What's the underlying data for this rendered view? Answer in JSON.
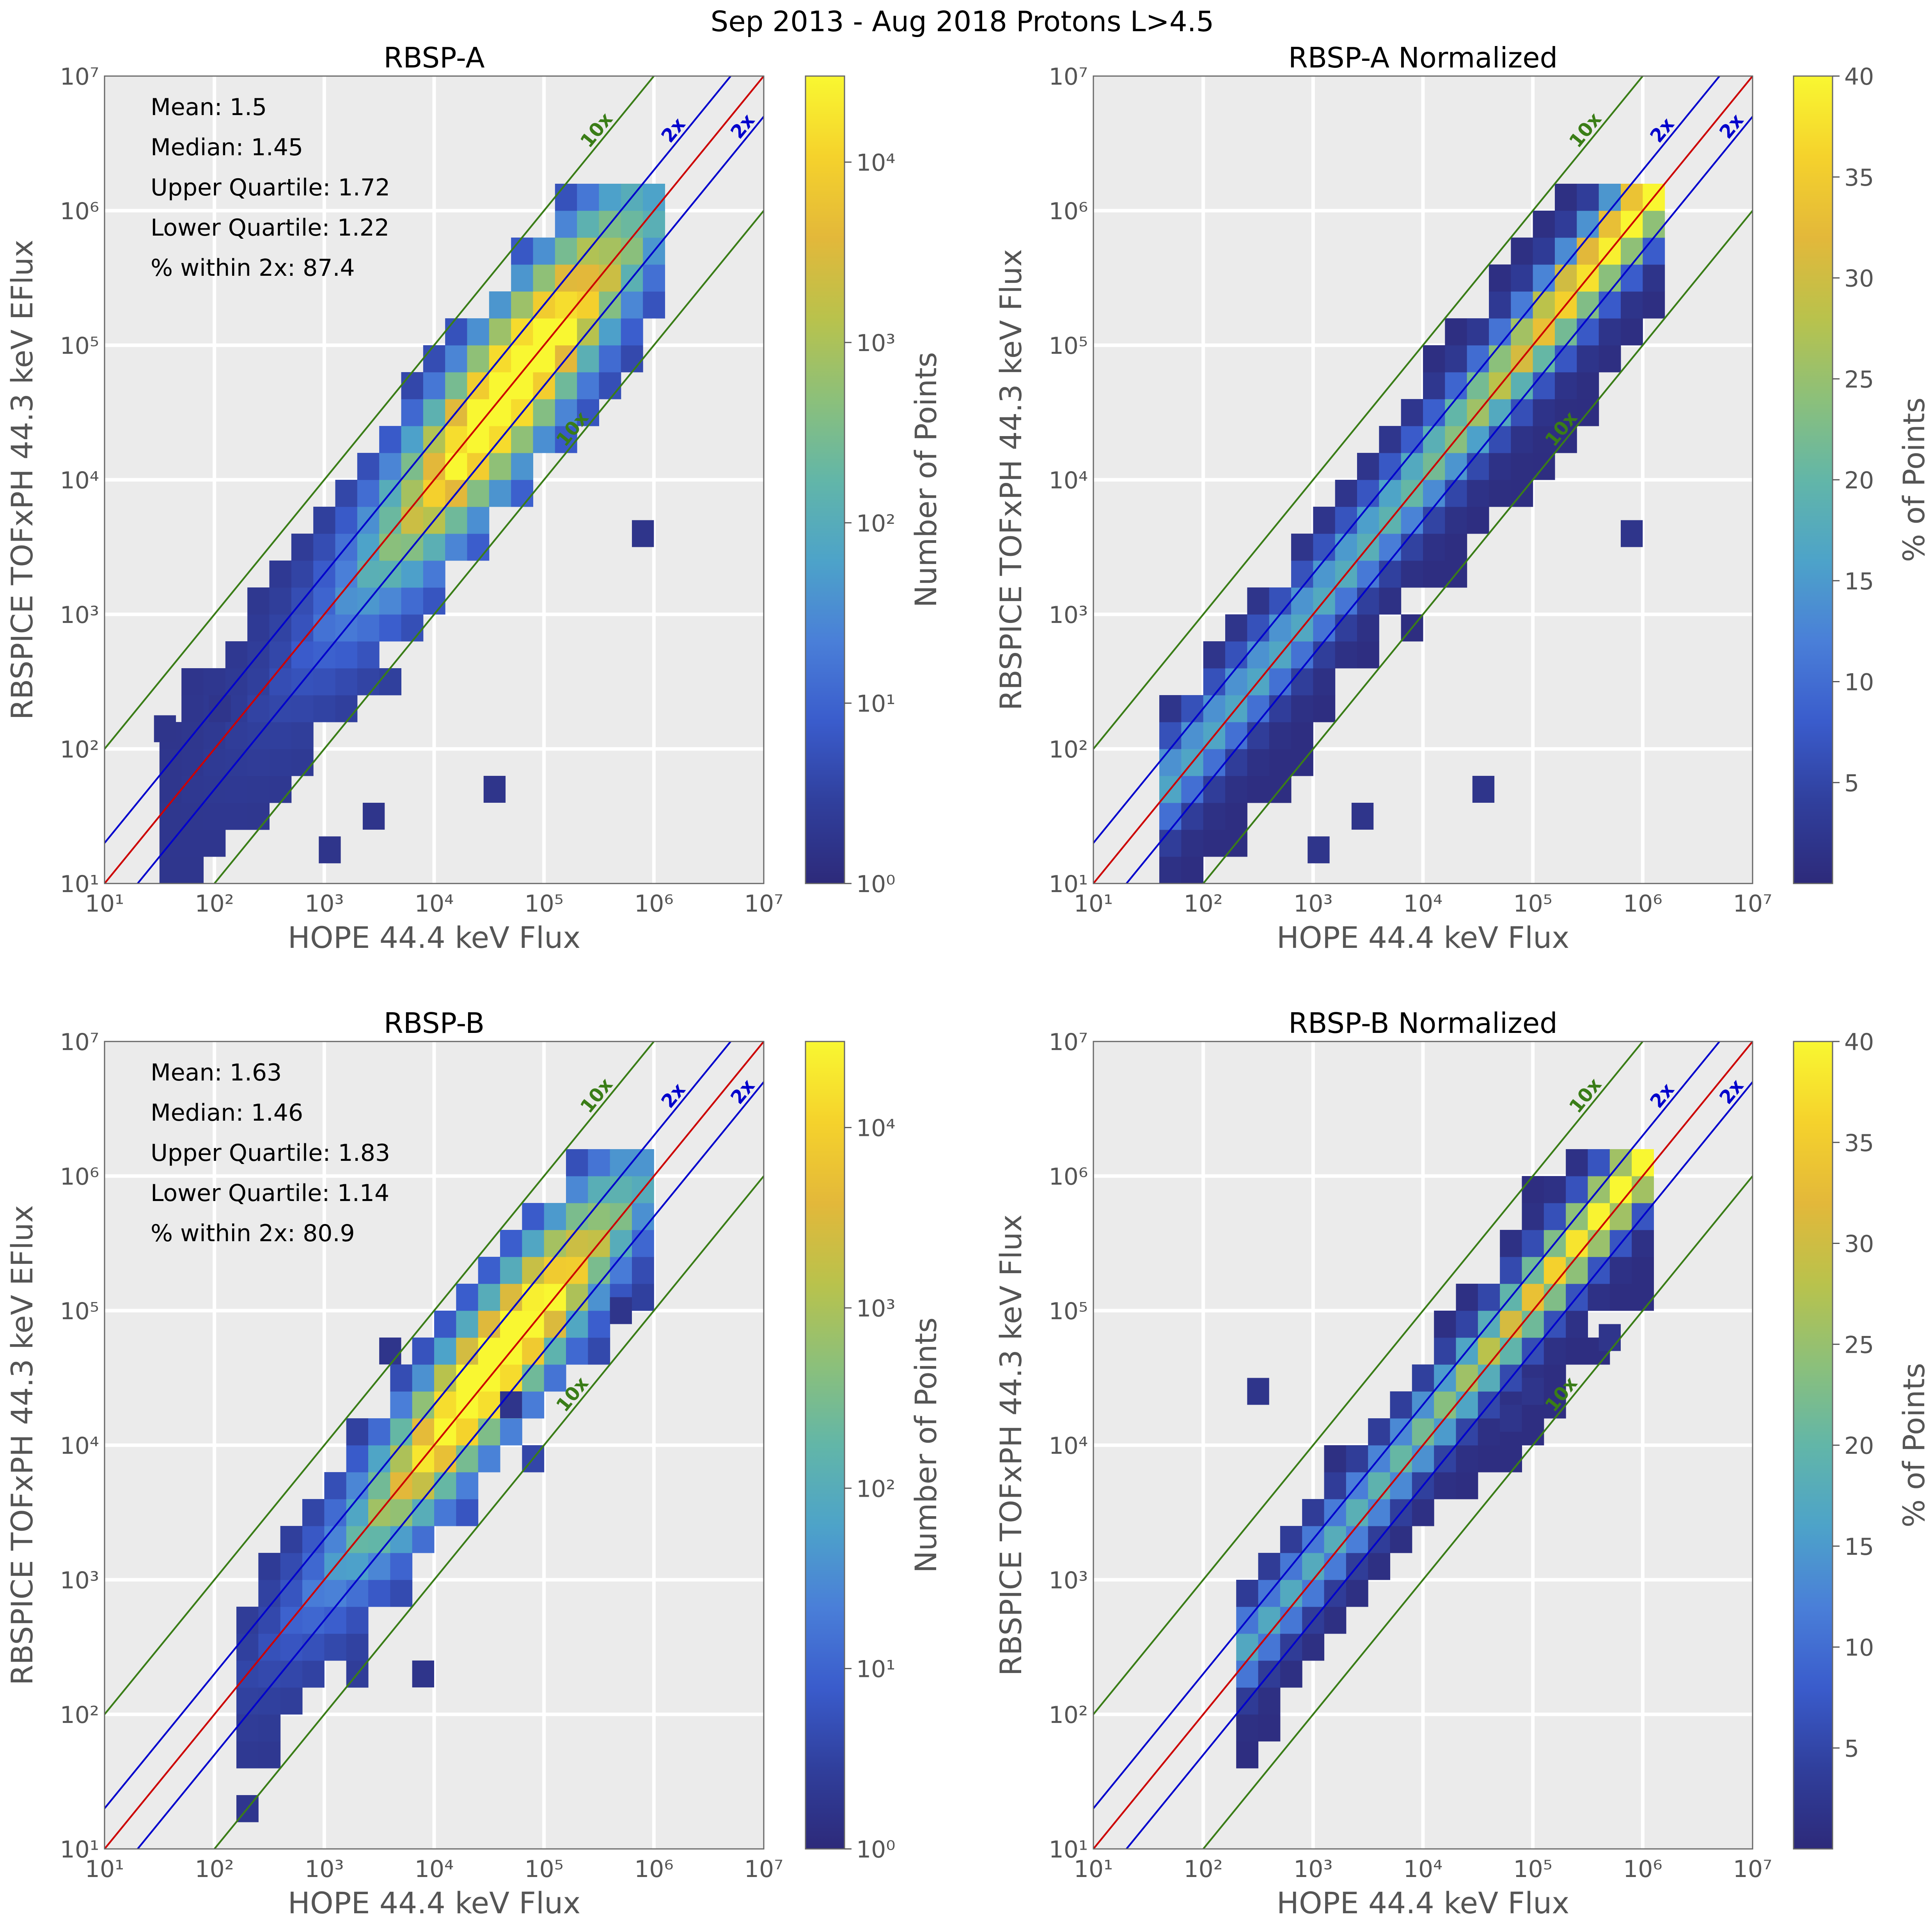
{
  "figure_title": "Sep 2013 - Aug 2018 Protons L>4.5",
  "colors": {
    "panel_bg": "#ebebeb",
    "grid": "#ffffff",
    "one_to_one_line": "#cc0000",
    "two_x_line": "#0000cc",
    "ten_x_line": "#3a7d17",
    "axis_text": "#555555",
    "colormap": [
      "#2d2a7a",
      "#303f9c",
      "#3a5ccc",
      "#4a7fd8",
      "#4da3c9",
      "#62b6a8",
      "#8cc07a",
      "#b9c24c",
      "#e3b83a",
      "#f5d22c",
      "#f9f731"
    ]
  },
  "chart_data": [
    {
      "type": "heatmap",
      "panel": "top-left",
      "title": "RBSP-A",
      "xlabel": "HOPE 44.4 keV Flux",
      "ylabel": "RBSPICE TOFxPH 44.3 keV EFlux",
      "xscale": "log",
      "yscale": "log",
      "xlim": [
        10,
        10000000
      ],
      "ylim": [
        10,
        10000000
      ],
      "xticks": [
        "10¹",
        "10²",
        "10³",
        "10⁴",
        "10⁵",
        "10⁶",
        "10⁷"
      ],
      "yticks": [
        "10¹",
        "10²",
        "10³",
        "10⁴",
        "10⁵",
        "10⁶",
        "10⁷"
      ],
      "reference_lines": [
        {
          "label": "10x",
          "ratio": 10
        },
        {
          "label": "2x",
          "ratio": 2
        },
        {
          "label": "",
          "ratio": 1
        },
        {
          "label": "2x",
          "ratio": 0.5
        },
        {
          "label": "10x",
          "ratio": 0.1
        }
      ],
      "stats": [
        "Mean: 1.5",
        "Median: 1.45",
        "Upper Quartile: 1.72",
        "Lower Quartile: 1.22",
        "% within 2x: 87.4"
      ],
      "colorbar": {
        "label": "Number of Points",
        "scale": "log",
        "min": 1,
        "max": 30000,
        "ticks": [
          "10⁰",
          "10¹",
          "10²",
          "10³",
          "10⁴"
        ]
      },
      "spread": 0.42,
      "offset": 0.05,
      "xrange": [
        1.5,
        6.1
      ],
      "peak": 4.7,
      "outliers": [
        [
          1.45,
          2.05
        ],
        [
          1.95,
          2.2
        ],
        [
          5.8,
          3.5
        ],
        [
          2.95,
          1.15
        ],
        [
          3.35,
          1.4
        ],
        [
          4.45,
          1.6
        ]
      ]
    },
    {
      "type": "heatmap",
      "panel": "top-right",
      "title": "RBSP-A Normalized",
      "xlabel": "HOPE 44.4 keV Flux",
      "ylabel": "RBSPICE TOFxPH 44.3 keV Flux",
      "xscale": "log",
      "yscale": "log",
      "xlim": [
        10,
        10000000
      ],
      "ylim": [
        10,
        10000000
      ],
      "xticks": [
        "10¹",
        "10²",
        "10³",
        "10⁴",
        "10⁵",
        "10⁶",
        "10⁷"
      ],
      "yticks": [
        "10¹",
        "10²",
        "10³",
        "10⁴",
        "10⁵",
        "10⁶",
        "10⁷"
      ],
      "reference_lines": [
        {
          "label": "10x",
          "ratio": 10
        },
        {
          "label": "2x",
          "ratio": 2
        },
        {
          "label": "",
          "ratio": 1
        },
        {
          "label": "2x",
          "ratio": 0.5
        },
        {
          "label": "10x",
          "ratio": 0.1
        }
      ],
      "stats": [],
      "colorbar": {
        "label": "% of Points",
        "scale": "linear",
        "min": 0,
        "max": 40,
        "ticks": [
          "5",
          "10",
          "15",
          "20",
          "25",
          "30",
          "35",
          "40"
        ]
      },
      "spread": 0.42,
      "offset": 0.05,
      "xrange": [
        1.6,
        6.1
      ],
      "peak": 6.0,
      "outliers": [
        [
          5.8,
          3.5
        ],
        [
          2.95,
          1.15
        ],
        [
          3.35,
          1.4
        ],
        [
          4.45,
          1.6
        ]
      ]
    },
    {
      "type": "heatmap",
      "panel": "bottom-left",
      "title": "RBSP-B",
      "xlabel": "HOPE 44.4 keV Flux",
      "ylabel": "RBSPICE TOFxPH 44.3 keV EFlux",
      "xscale": "log",
      "yscale": "log",
      "xlim": [
        10,
        10000000
      ],
      "ylim": [
        10,
        10000000
      ],
      "xticks": [
        "10¹",
        "10²",
        "10³",
        "10⁴",
        "10⁵",
        "10⁶",
        "10⁷"
      ],
      "yticks": [
        "10¹",
        "10²",
        "10³",
        "10⁴",
        "10⁵",
        "10⁶",
        "10⁷"
      ],
      "reference_lines": [
        {
          "label": "10x",
          "ratio": 10
        },
        {
          "label": "2x",
          "ratio": 2
        },
        {
          "label": "",
          "ratio": 1
        },
        {
          "label": "2x",
          "ratio": 0.5
        },
        {
          "label": "10x",
          "ratio": 0.1
        }
      ],
      "stats": [
        "Mean: 1.63",
        "Median: 1.46",
        "Upper Quartile: 1.83",
        "Lower Quartile: 1.14",
        "% within 2x: 80.9"
      ],
      "colorbar": {
        "label": "Number of Points",
        "scale": "log",
        "min": 1,
        "max": 30000,
        "ticks": [
          "10⁰",
          "10¹",
          "10²",
          "10³",
          "10⁴"
        ]
      },
      "spread": 0.36,
      "offset": 0.1,
      "xrange": [
        2.2,
        5.9
      ],
      "peak": 4.55,
      "outliers": [
        [
          3.5,
          4.6
        ],
        [
          4.6,
          4.2
        ],
        [
          5.6,
          4.9
        ],
        [
          3.8,
          2.2
        ]
      ]
    },
    {
      "type": "heatmap",
      "panel": "bottom-right",
      "title": "RBSP-B Normalized",
      "xlabel": "HOPE 44.4 keV Flux",
      "ylabel": "RBSPICE TOFxPH 44.3 keV Flux",
      "xscale": "log",
      "yscale": "log",
      "xlim": [
        10,
        10000000
      ],
      "ylim": [
        10,
        10000000
      ],
      "xticks": [
        "10¹",
        "10²",
        "10³",
        "10⁴",
        "10⁵",
        "10⁶",
        "10⁷"
      ],
      "yticks": [
        "10¹",
        "10²",
        "10³",
        "10⁴",
        "10⁵",
        "10⁶",
        "10⁷"
      ],
      "reference_lines": [
        {
          "label": "10x",
          "ratio": 10
        },
        {
          "label": "2x",
          "ratio": 2
        },
        {
          "label": "",
          "ratio": 1
        },
        {
          "label": "2x",
          "ratio": 0.5
        },
        {
          "label": "10x",
          "ratio": 0.1
        }
      ],
      "stats": [],
      "colorbar": {
        "label": "% of Points",
        "scale": "linear",
        "min": 0,
        "max": 40,
        "ticks": [
          "5",
          "10",
          "15",
          "20",
          "25",
          "30",
          "35",
          "40"
        ]
      },
      "spread": 0.36,
      "offset": 0.1,
      "xrange": [
        2.3,
        5.95
      ],
      "peak": 5.95,
      "outliers": [
        [
          2.4,
          4.3
        ],
        [
          4.9,
          4.3
        ],
        [
          4.7,
          4.1
        ],
        [
          5.6,
          4.7
        ]
      ]
    }
  ]
}
